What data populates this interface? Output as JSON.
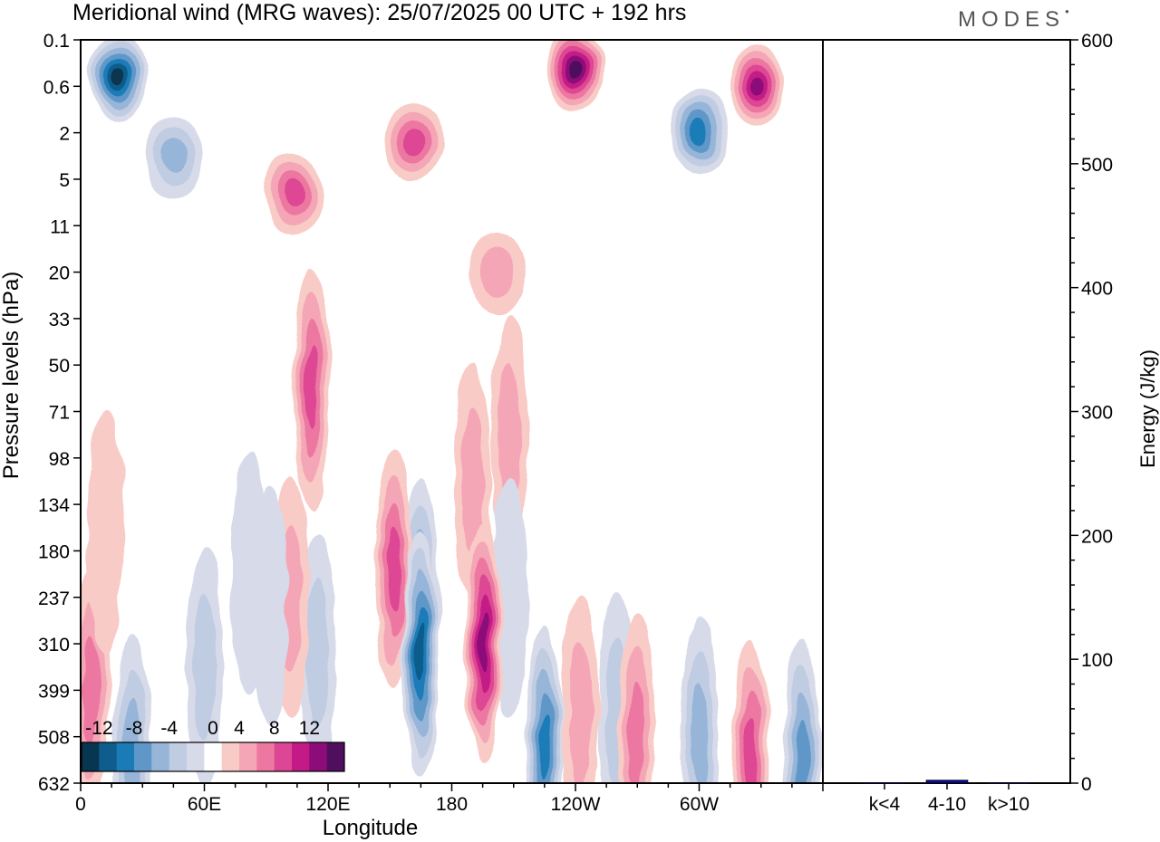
{
  "header": {
    "title": "Meridional wind (MRG waves):  25/07/2025  00 UTC  + 192 hrs",
    "brand": "MODES"
  },
  "chart_data": [
    {
      "type": "heatmap",
      "title": "Meridional wind (MRG waves):  25/07/2025  00 UTC  + 192 hrs",
      "xlabel": "Longitude",
      "ylabel": "Pressure levels (hPa)",
      "x_ticks": [
        "0",
        "60E",
        "120E",
        "180",
        "120W",
        "60W"
      ],
      "x_range_deg": [
        0,
        360
      ],
      "y_ticks": [
        "0.1",
        "0.6",
        "2",
        "5",
        "11",
        "20",
        "33",
        "50",
        "71",
        "98",
        "134",
        "180",
        "237",
        "310",
        "399",
        "508",
        "632"
      ],
      "colorbar": {
        "labels": [
          "-12",
          "-8",
          "-4",
          "0",
          "4",
          "8",
          "12"
        ],
        "levels": [
          -14,
          -12,
          -10,
          -8,
          -6,
          -4,
          -2,
          2,
          4,
          6,
          8,
          10,
          12,
          14
        ],
        "colors": [
          "#08354f",
          "#0f5d8c",
          "#1b7bb7",
          "#5f98c8",
          "#97b5d8",
          "#bfcce2",
          "#d7dae9",
          "#ffffff",
          "#f9cbc7",
          "#f5a6b6",
          "#ec78a1",
          "#dd4694",
          "#c41a87",
          "#8c0d79",
          "#4f0e5e"
        ]
      },
      "features": [
        {
          "lon": 18,
          "lev": 0.8,
          "value": -15,
          "note": "strong negative core upper stratosphere"
        },
        {
          "lon": 45,
          "lev": 2.5,
          "value": -7
        },
        {
          "lon": 103,
          "lev": 3.3,
          "value": 8
        },
        {
          "lon": 162,
          "lev": 2.2,
          "value": 9
        },
        {
          "lon": 240,
          "lev": 0.6,
          "value": 14
        },
        {
          "lon": 300,
          "lev": 2.0,
          "value": -11
        },
        {
          "lon": 328,
          "lev": 1.0,
          "value": 12
        },
        {
          "lon": 165,
          "lev": 12.0,
          "value": -8
        },
        {
          "lon": 112,
          "lev": 7.5,
          "value": 9
        },
        {
          "lon": 202,
          "lev": 5.0,
          "value": 5
        },
        {
          "lon": 208,
          "lev": 8.5,
          "value": 4
        },
        {
          "lon": 190,
          "lev": 9.5,
          "value": 4
        },
        {
          "lon": 208,
          "lev": 12.0,
          "value": -2
        },
        {
          "lon": 115,
          "lev": 13.2,
          "value": -4
        },
        {
          "lon": 60,
          "lev": 13.5,
          "value": -4
        },
        {
          "lon": 102,
          "lev": 12.0,
          "value": 4
        },
        {
          "lon": 152,
          "lev": 11.4,
          "value": 9
        },
        {
          "lon": 165,
          "lev": 13.2,
          "value": -12
        },
        {
          "lon": 195,
          "lev": 13.0,
          "value": 13
        },
        {
          "lon": 225,
          "lev": 15.2,
          "value": -10
        },
        {
          "lon": 242,
          "lev": 14.5,
          "value": 4
        },
        {
          "lon": 260,
          "lev": 14.5,
          "value": -4
        },
        {
          "lon": 270,
          "lev": 15.0,
          "value": 6
        },
        {
          "lon": 300,
          "lev": 15.0,
          "value": -6
        },
        {
          "lon": 325,
          "lev": 15.5,
          "value": 9
        },
        {
          "lon": 350,
          "lev": 15.5,
          "value": -8
        },
        {
          "lon": 5,
          "lev": 14.0,
          "value": 6
        },
        {
          "lon": 25,
          "lev": 15.4,
          "value": -6
        },
        {
          "lon": 12,
          "lev": 10.6,
          "value": 3
        },
        {
          "lon": 82,
          "lev": 11.5,
          "value": -3
        },
        {
          "lon": 92,
          "lev": 12.2,
          "value": -3
        }
      ]
    },
    {
      "type": "bar",
      "categories": [
        "k<4",
        "4-10",
        "k>10"
      ],
      "values": [
        0.3,
        2.5,
        0.2
      ],
      "ylabel": "Energy (J/kg)",
      "ylim": [
        0,
        600
      ],
      "y_ticks": [
        "0",
        "100",
        "200",
        "300",
        "400",
        "500",
        "600"
      ],
      "bar_color": "#0a0a8a"
    }
  ]
}
